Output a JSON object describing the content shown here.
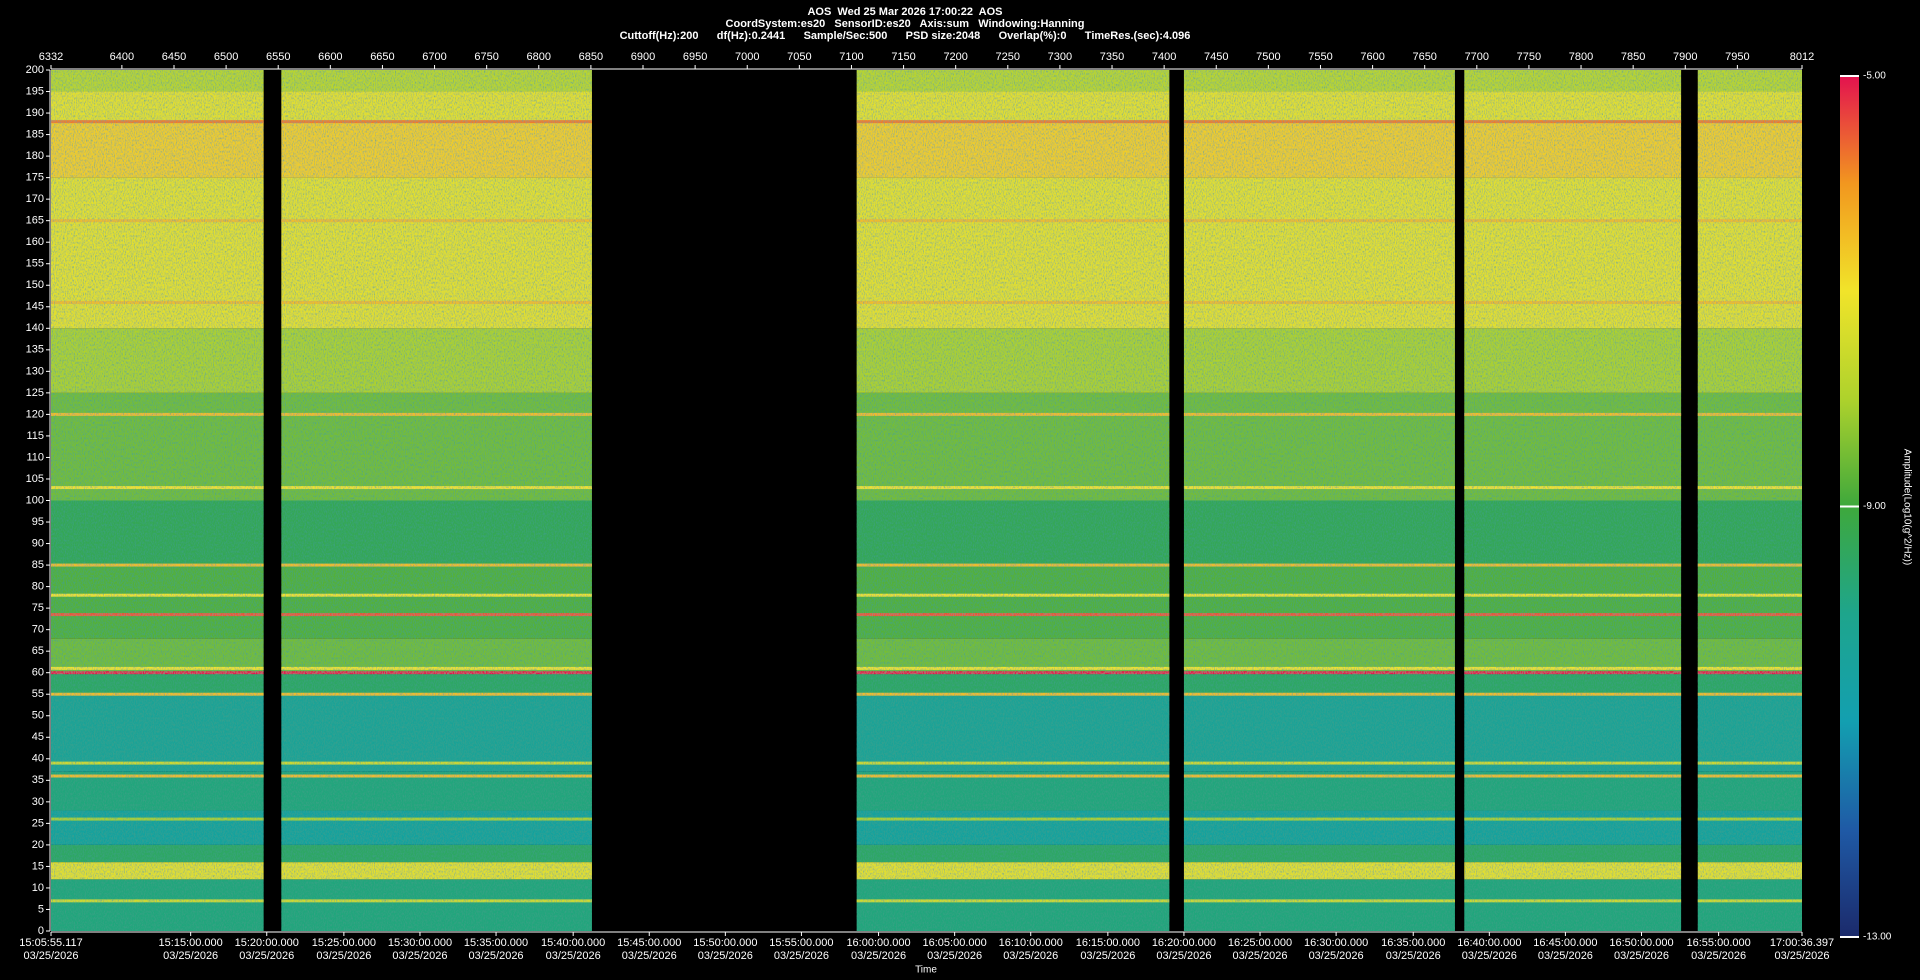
{
  "chart_data": {
    "type": "spectrogram",
    "title": "AOS  Wed 25 Mar 2026 17:00:22  AOS",
    "subtitle": [
      "CoordSystem:es20   SensorID:es20   Axis:sum   Windowing:Hanning",
      "Cuttoff(Hz):200      df(Hz):0.2441      Sample/Sec:500      PSD size:2048      Overlap(%):0      TimeRes.(sec):4.096"
    ],
    "xlabel": "Time",
    "colorbar_label": "Amplitude(Log10(g^2/Hz))",
    "xlim": [
      6332,
      8012
    ],
    "xticks": [
      6332,
      6400,
      6450,
      6500,
      6550,
      6600,
      6650,
      6700,
      6750,
      6800,
      6850,
      6900,
      6950,
      7000,
      7050,
      7100,
      7150,
      7200,
      7250,
      7300,
      7350,
      7400,
      7450,
      7500,
      7550,
      7600,
      7650,
      7700,
      7750,
      7800,
      7850,
      7900,
      7950,
      8012
    ],
    "time_ticks": [
      {
        "value": 6332,
        "label": "15:05:55.117",
        "date": "03/25/2026"
      },
      {
        "value": 6466,
        "label": "15:15:00.000",
        "date": "03/25/2026"
      },
      {
        "value": 6539,
        "label": "15:20:00.000",
        "date": "03/25/2026"
      },
      {
        "value": 6613,
        "label": "15:25:00.000",
        "date": "03/25/2026"
      },
      {
        "value": 6686,
        "label": "15:30:00.000",
        "date": "03/25/2026"
      },
      {
        "value": 6759,
        "label": "15:35:00.000",
        "date": "03/25/2026"
      },
      {
        "value": 6833,
        "label": "15:40:00.000",
        "date": "03/25/2026"
      },
      {
        "value": 6906,
        "label": "15:45:00.000",
        "date": "03/25/2026"
      },
      {
        "value": 6979,
        "label": "15:50:00.000",
        "date": "03/25/2026"
      },
      {
        "value": 7052,
        "label": "15:55:00.000",
        "date": "03/25/2026"
      },
      {
        "value": 7126,
        "label": "16:00:00.000",
        "date": "03/25/2026"
      },
      {
        "value": 7199,
        "label": "16:05:00.000",
        "date": "03/25/2026"
      },
      {
        "value": 7272,
        "label": "16:10:00.000",
        "date": "03/25/2026"
      },
      {
        "value": 7346,
        "label": "16:15:00.000",
        "date": "03/25/2026"
      },
      {
        "value": 7419,
        "label": "16:20:00.000",
        "date": "03/25/2026"
      },
      {
        "value": 7492,
        "label": "16:25:00.000",
        "date": "03/25/2026"
      },
      {
        "value": 7565,
        "label": "16:30:00.000",
        "date": "03/25/2026"
      },
      {
        "value": 7639,
        "label": "16:35:00.000",
        "date": "03/25/2026"
      },
      {
        "value": 7712,
        "label": "16:40:00.000",
        "date": "03/25/2026"
      },
      {
        "value": 7785,
        "label": "16:45:00.000",
        "date": "03/25/2026"
      },
      {
        "value": 7858,
        "label": "16:50:00.000",
        "date": "03/25/2026"
      },
      {
        "value": 7932,
        "label": "16:55:00.000",
        "date": "03/25/2026"
      },
      {
        "value": 8012,
        "label": "17:00:36.397",
        "date": "03/25/2026"
      }
    ],
    "ylim": [
      0,
      200
    ],
    "yticks": [
      0,
      5,
      10,
      15,
      20,
      25,
      30,
      35,
      40,
      45,
      50,
      55,
      60,
      65,
      70,
      75,
      80,
      85,
      90,
      95,
      100,
      105,
      110,
      115,
      120,
      125,
      130,
      135,
      140,
      145,
      150,
      155,
      160,
      165,
      170,
      175,
      180,
      185,
      190,
      195,
      200
    ],
    "clim": [
      -13,
      -5
    ],
    "cticks": [
      {
        "value": -5,
        "label": "-5.00"
      },
      {
        "value": -9,
        "label": "-9.00"
      },
      {
        "value": -13,
        "label": "-13.00"
      }
    ],
    "colormap": [
      "#1b2a6b",
      "#1f5aa6",
      "#139fb0",
      "#1ea58c",
      "#3ea83c",
      "#aed22c",
      "#f1e42a",
      "#f2971f",
      "#e3124f"
    ],
    "segments": [
      [
        6332,
        6536
      ],
      [
        6553,
        6851
      ],
      [
        7105,
        7405
      ],
      [
        7419,
        7679
      ],
      [
        7688,
        7896
      ],
      [
        7912,
        8012
      ]
    ],
    "bands": {
      "edges": [
        0,
        12,
        16,
        20,
        28,
        37,
        55,
        60,
        68,
        85,
        100,
        125,
        140,
        175,
        188,
        195,
        200
      ],
      "values": [
        -9.8,
        -7.2,
        -9.5,
        -10.5,
        -9.8,
        -10.3,
        -9.5,
        -8.5,
        -8.8,
        -9.3,
        -8.5,
        -8.0,
        -7.2,
        -6.7,
        -7.2,
        -7.8
      ]
    },
    "lines": {
      "freq": [
        188,
        165,
        146,
        120,
        103,
        85,
        78,
        73.5,
        61,
        60,
        55,
        39,
        36,
        26,
        7
      ],
      "values": [
        -5.8,
        -6.5,
        -6.5,
        -6.5,
        -7.0,
        -6.5,
        -7.0,
        -5.5,
        -7.0,
        -5.0,
        -6.5,
        -7.5,
        -6.5,
        -8.0,
        -7.5
      ]
    }
  }
}
